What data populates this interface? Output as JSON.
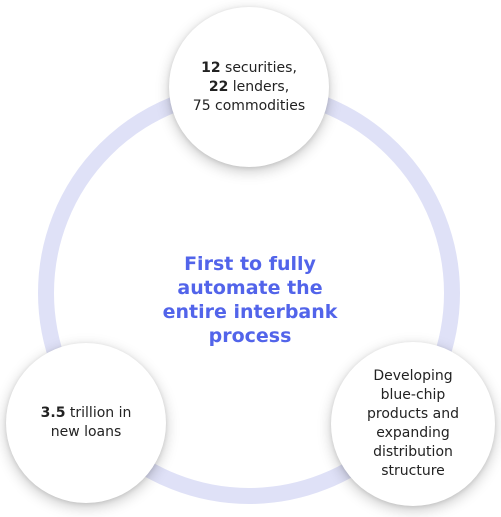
{
  "center": {
    "lines": [
      "First to fully",
      "automate the",
      "entire interbank",
      "process"
    ]
  },
  "nodes": {
    "top": {
      "line1_bold": "12",
      "line1_rest": " securities,",
      "line2_bold": "22",
      "line2_rest": " lenders,",
      "line3": "75 commodities"
    },
    "left": {
      "line1_bold": "3.5",
      "line1_rest": " trillion in",
      "line2": "new loans"
    },
    "right": {
      "lines": [
        "Developing",
        "blue-chip",
        "products and",
        "expanding",
        "distribution",
        "structure"
      ]
    }
  },
  "colors": {
    "accent_text": "#5264ea",
    "ring": "#dfe1f7",
    "node_fill": "#ffffff",
    "body_text": "#222222"
  }
}
